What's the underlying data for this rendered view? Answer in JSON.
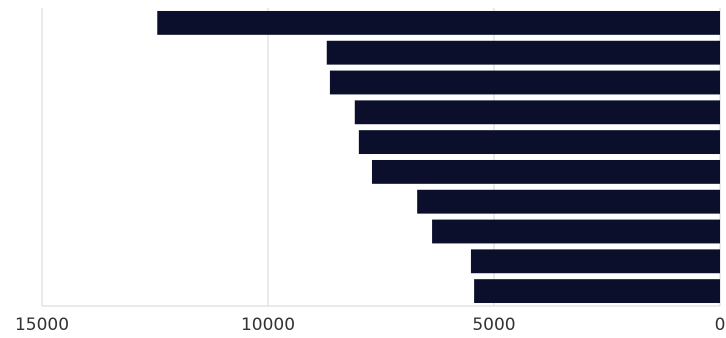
{
  "chart_data": {
    "type": "barh",
    "categories": [
      null,
      null,
      null,
      null,
      null,
      null,
      null,
      null,
      null,
      null
    ],
    "values": [
      12450,
      8700,
      8630,
      8080,
      7990,
      7700,
      6700,
      6370,
      5510,
      5440
    ],
    "color": "#0b0f2b",
    "xlim": [
      15000,
      0
    ],
    "xticks": [
      15000,
      10000,
      5000,
      0
    ],
    "grid": true
  }
}
